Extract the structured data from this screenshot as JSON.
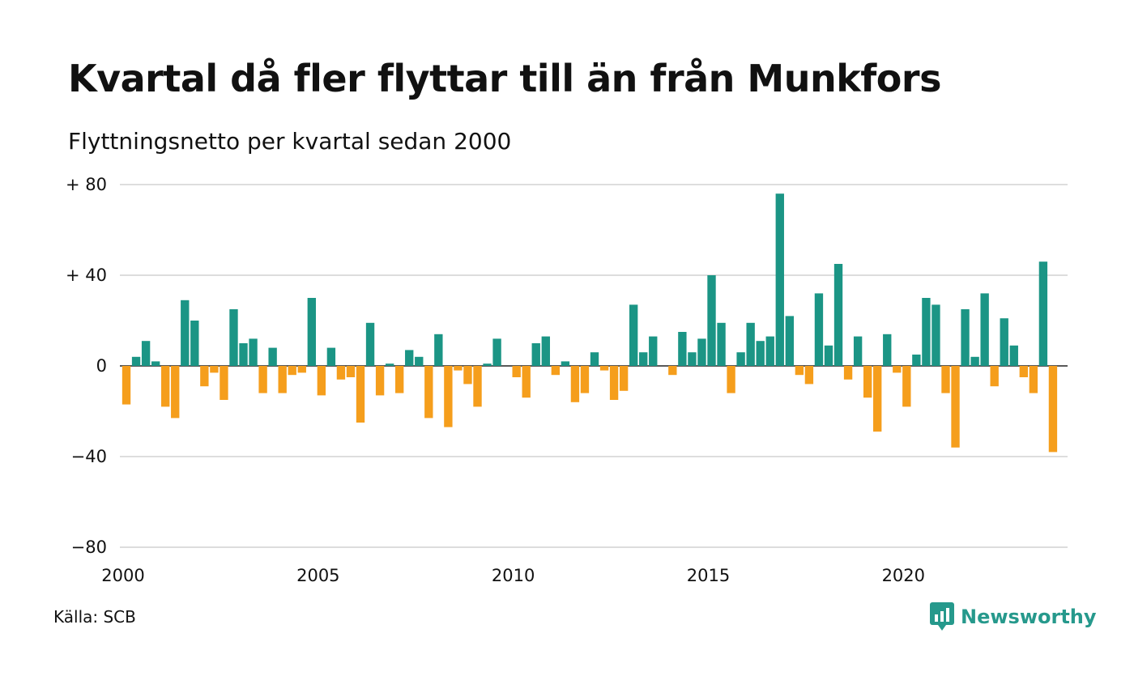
{
  "title": "Kvartal då fler flyttar till än från Munkfors",
  "subtitle": "Flyttningsnetto per kvartal sedan 2000",
  "source": "Källa: SCB",
  "logo_text": "Newsworthy",
  "colors": {
    "positive": "#1b9585",
    "negative": "#f59e1c",
    "grid": "#dddddd",
    "zero_line": "#222222",
    "logo": "#26998c"
  },
  "chart_data": {
    "type": "bar",
    "title": "Kvartal då fler flyttar till än från Munkfors",
    "subtitle": "Flyttningsnetto per kvartal sedan 2000",
    "xlabel": "",
    "ylabel": "",
    "x_start": 2000,
    "x_step": 0.25,
    "ylim": [
      -80,
      80
    ],
    "xlim": [
      2000,
      2024.25
    ],
    "yticks": [
      80,
      40,
      0,
      -40,
      -80
    ],
    "ytick_labels": [
      "+ 80",
      "+ 40",
      "0",
      "−40",
      "−80"
    ],
    "xticks": [
      2000,
      2005,
      2010,
      2015,
      2020
    ],
    "xtick_labels": [
      "2000",
      "2005",
      "2010",
      "2015",
      "2020"
    ],
    "grid": true,
    "values": [
      -17,
      4,
      11,
      2,
      -18,
      -23,
      29,
      20,
      -9,
      -3,
      -15,
      25,
      10,
      12,
      -12,
      8,
      -12,
      -4,
      -3,
      30,
      -13,
      8,
      -6,
      -5,
      -25,
      19,
      -13,
      1,
      -12,
      7,
      4,
      -23,
      14,
      -27,
      -2,
      -8,
      -18,
      1,
      12,
      0,
      -5,
      -14,
      10,
      13,
      -4,
      2,
      -16,
      -12,
      6,
      -2,
      -15,
      -11,
      27,
      6,
      13,
      0,
      -4,
      15,
      6,
      12,
      40,
      19,
      -12,
      6,
      19,
      11,
      13,
      76,
      22,
      -4,
      -8,
      32,
      9,
      45,
      -6,
      13,
      -14,
      -29,
      14,
      -3,
      -18,
      5,
      30,
      27,
      -12,
      -36,
      25,
      4,
      32,
      -9,
      21,
      9,
      -5,
      -12,
      46,
      -38
    ]
  }
}
